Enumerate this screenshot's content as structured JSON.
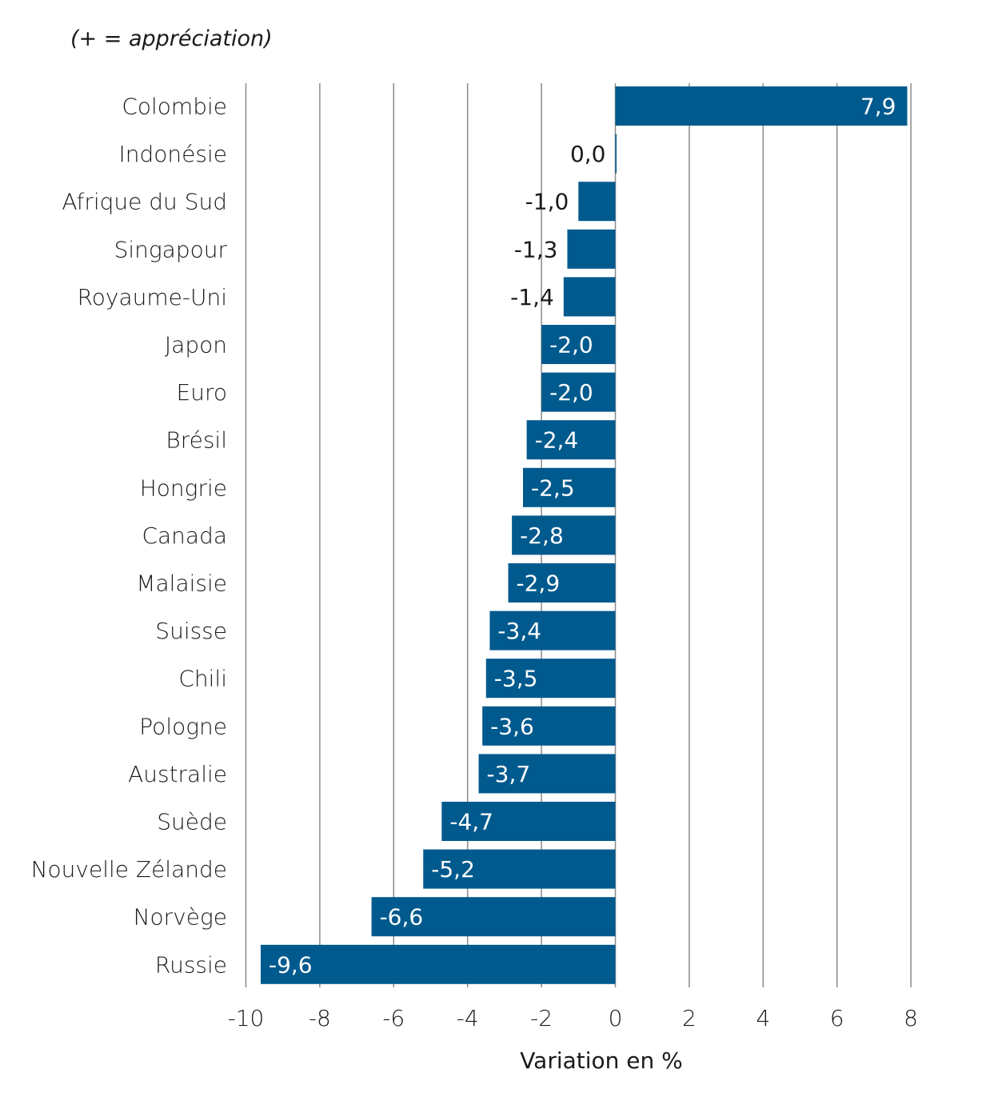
{
  "chart_data": {
    "type": "bar",
    "orientation": "horizontal",
    "subtitle": "(+ = appréciation)",
    "xlabel": "Variation en %",
    "ylabel": "",
    "xlim": [
      -10,
      8
    ],
    "xticks": [
      -10,
      -8,
      -6,
      -4,
      -2,
      0,
      2,
      4,
      6,
      8
    ],
    "grid": "vertical",
    "categories": [
      "Colombie",
      "Indonésie",
      "Afrique du Sud",
      "Singapour",
      "Royaume-Uni",
      "Japon",
      "Euro",
      "Brésil",
      "Hongrie",
      "Canada",
      "Malaisie",
      "Suisse",
      "Chili",
      "Pologne",
      "Australie",
      "Suède",
      "Nouvelle Zélande",
      "Norvège",
      "Russie"
    ],
    "values": [
      7.9,
      0.0,
      -1.0,
      -1.3,
      -1.4,
      -2.0,
      -2.0,
      -2.4,
      -2.5,
      -2.8,
      -2.9,
      -3.4,
      -3.5,
      -3.6,
      -3.7,
      -4.7,
      -5.2,
      -6.6,
      -9.6
    ],
    "value_labels": [
      "7,9",
      "0,0",
      "-1,0",
      "-1,3",
      "-1,4",
      "-2,0",
      "-2,0",
      "-2,4",
      "-2,5",
      "-2,8",
      "-2,9",
      "-3,4",
      "-3,5",
      "-3,6",
      "-3,7",
      "-4,7",
      "-5,2",
      "-6,6",
      "-9,6"
    ],
    "tick_labels": [
      "-10",
      "-8",
      "-6",
      "-4",
      "-2",
      "0",
      "2",
      "4",
      "6",
      "8"
    ],
    "colors": {
      "bar": "#005a8e",
      "grid": "#8a8a8a",
      "label_inside": "#ffffff",
      "label_outside": "#1a1a1a"
    }
  }
}
